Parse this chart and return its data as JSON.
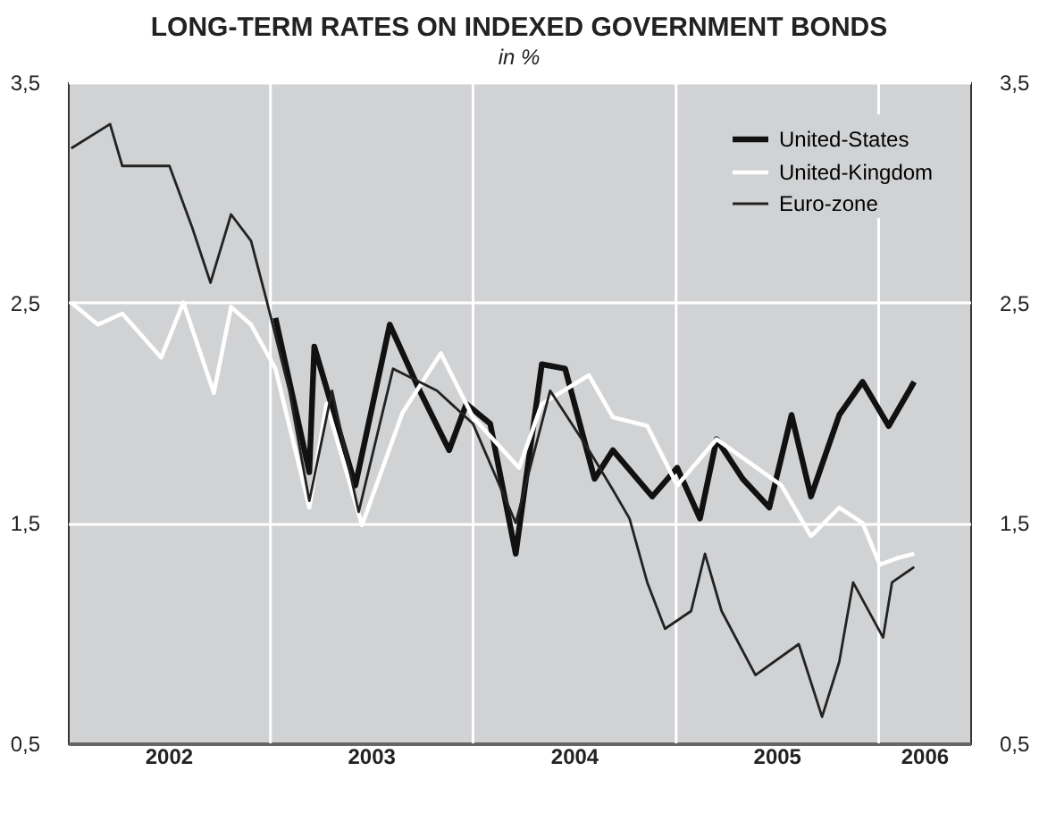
{
  "chart_data": {
    "type": "line",
    "title": "LONG-TERM RATES ON INDEXED GOVERNMENT BONDS",
    "subtitle": "in %",
    "xlim": [
      "2002-01-01",
      "2006-06-15"
    ],
    "xticks": [
      {
        "value": "2002-07-01",
        "label": "2002"
      },
      {
        "value": "2003-07-01",
        "label": "2003"
      },
      {
        "value": "2004-07-01",
        "label": "2004"
      },
      {
        "value": "2005-07-01",
        "label": "2005"
      },
      {
        "value": "2006-03-24",
        "label": "2006"
      }
    ],
    "ylim": [
      0.5,
      3.5
    ],
    "yticks": [
      {
        "value": 0.5,
        "label": "0,5"
      },
      {
        "value": 1.5,
        "label": "1,5"
      },
      {
        "value": 2.5,
        "label": "2,5"
      },
      {
        "value": 3.5,
        "label": "3,5"
      }
    ],
    "y2lim": [
      0.5,
      3.5
    ],
    "y2ticks": [
      {
        "value": 0.5,
        "label": "0,5"
      },
      {
        "value": 1.5,
        "label": "1,5"
      },
      {
        "value": 2.5,
        "label": "2,5"
      },
      {
        "value": 3.5,
        "label": "3,5"
      }
    ],
    "grid": "y",
    "legend": "top right",
    "ref_lines": [
      {
        "axis": "x",
        "value": "2003-01-01",
        "label": null,
        "color": "#ffffff"
      },
      {
        "axis": "x",
        "value": "2004-01-01",
        "label": null,
        "color": "#ffffff"
      },
      {
        "axis": "x",
        "value": "2005-01-01",
        "label": null,
        "color": "#ffffff"
      },
      {
        "axis": "x",
        "value": "2006-01-01",
        "label": null,
        "color": "#ffffff"
      }
    ],
    "series": [
      {
        "name": "United-States",
        "color": "#111111",
        "x": [
          "2003-01-10",
          "2003-03-12",
          "2003-03-21",
          "2003-06-03",
          "2003-08-04",
          "2003-09-27",
          "2003-11-19",
          "2003-12-20",
          "2004-02-01",
          "2004-03-18",
          "2004-05-04",
          "2004-06-15",
          "2004-08-07",
          "2004-09-09",
          "2004-11-19",
          "2005-01-03",
          "2005-02-13",
          "2005-03-15",
          "2005-05-01",
          "2005-06-18",
          "2005-07-28",
          "2005-09-01",
          "2005-10-22",
          "2005-12-03",
          "2006-01-19",
          "2006-03-06"
        ],
        "values": [
          2.43,
          1.73,
          2.3,
          1.67,
          2.4,
          2.1,
          1.83,
          2.04,
          1.95,
          1.36,
          2.22,
          2.2,
          1.7,
          1.83,
          1.62,
          1.75,
          1.52,
          1.88,
          1.7,
          1.57,
          1.99,
          1.62,
          1.99,
          2.14,
          1.94,
          2.14
        ]
      },
      {
        "name": "United-Kingdom",
        "color": "#ffffff",
        "x": [
          "2002-01-07",
          "2002-02-24",
          "2002-04-09",
          "2002-06-18",
          "2002-07-28",
          "2002-09-21",
          "2002-10-22",
          "2002-11-27",
          "2003-01-10",
          "2003-03-12",
          "2003-04-12",
          "2003-06-15",
          "2003-08-27",
          "2003-11-04",
          "2004-01-01",
          "2004-03-24",
          "2004-05-04",
          "2004-07-28",
          "2004-09-09",
          "2004-11-10",
          "2005-01-03",
          "2005-03-15",
          "2005-07-10",
          "2005-09-01",
          "2005-10-22",
          "2005-12-03",
          "2006-01-03",
          "2006-02-03",
          "2006-03-06"
        ],
        "values": [
          2.5,
          2.4,
          2.45,
          2.25,
          2.5,
          2.09,
          2.48,
          2.4,
          2.2,
          1.57,
          2.04,
          1.49,
          2.0,
          2.27,
          1.98,
          1.75,
          2.04,
          2.17,
          1.98,
          1.94,
          1.67,
          1.88,
          1.67,
          1.44,
          1.57,
          1.5,
          1.31,
          1.34,
          1.36
        ]
      },
      {
        "name": "Euro-zone",
        "color": "#222222",
        "x": [
          "2002-01-07",
          "2002-03-18",
          "2002-04-09",
          "2002-07-03",
          "2002-08-13",
          "2002-09-15",
          "2002-10-22",
          "2002-11-27",
          "2002-12-25",
          "2003-02-04",
          "2003-03-12",
          "2003-04-22",
          "2003-06-09",
          "2003-08-10",
          "2003-10-28",
          "2004-01-01",
          "2004-03-18",
          "2004-05-19",
          "2004-07-28",
          "2004-09-09",
          "2004-10-09",
          "2004-11-10",
          "2004-12-12",
          "2005-01-28",
          "2005-02-22",
          "2005-03-24",
          "2005-05-24",
          "2005-08-10",
          "2005-09-21",
          "2005-10-22",
          "2005-11-16",
          "2006-01-09",
          "2006-01-25",
          "2006-03-06"
        ],
        "values": [
          3.2,
          3.31,
          3.12,
          3.12,
          2.84,
          2.59,
          2.9,
          2.78,
          2.51,
          2.1,
          1.6,
          2.1,
          1.55,
          2.2,
          2.1,
          1.95,
          1.5,
          2.1,
          1.83,
          1.65,
          1.52,
          1.23,
          1.02,
          1.1,
          1.36,
          1.1,
          0.81,
          0.95,
          0.62,
          0.87,
          1.23,
          0.98,
          1.23,
          1.3
        ]
      }
    ]
  }
}
